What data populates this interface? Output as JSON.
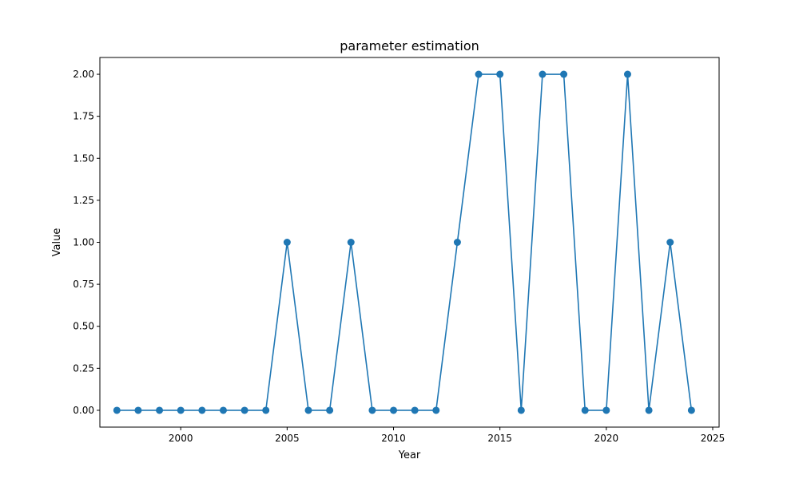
{
  "chart_data": {
    "type": "line",
    "title": "parameter estimation",
    "xlabel": "Year",
    "ylabel": "Value",
    "xlim": [
      1996.2,
      2025.3
    ],
    "ylim": [
      -0.1,
      2.1
    ],
    "xticks": [
      2000,
      2005,
      2010,
      2015,
      2020,
      2025
    ],
    "xtick_labels": [
      "2000",
      "2005",
      "2010",
      "2015",
      "2020",
      "2025"
    ],
    "yticks": [
      0.0,
      0.25,
      0.5,
      0.75,
      1.0,
      1.25,
      1.5,
      1.75,
      2.0
    ],
    "ytick_labels": [
      "0.00",
      "0.25",
      "0.50",
      "0.75",
      "1.00",
      "1.25",
      "1.50",
      "1.75",
      "2.00"
    ],
    "grid": false,
    "series": [
      {
        "color": "#1f77b4",
        "marker": "circle",
        "x": [
          1997,
          1998,
          1999,
          2000,
          2001,
          2002,
          2003,
          2004,
          2005,
          2006,
          2007,
          2008,
          2009,
          2010,
          2011,
          2012,
          2013,
          2014,
          2015,
          2016,
          2017,
          2018,
          2019,
          2020,
          2021,
          2022,
          2023,
          2024
        ],
        "y": [
          0,
          0,
          0,
          0,
          0,
          0,
          0,
          0,
          1,
          0,
          0,
          1,
          0,
          0,
          0,
          0,
          1,
          2,
          2,
          0,
          2,
          2,
          0,
          0,
          2,
          0,
          1,
          0
        ]
      }
    ]
  }
}
